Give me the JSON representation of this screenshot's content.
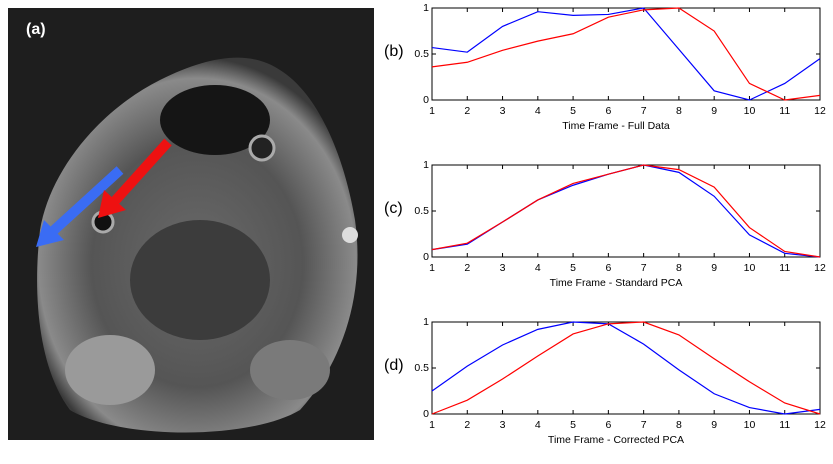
{
  "image": {
    "label": "(a)"
  },
  "chart_data": [
    {
      "type": "line",
      "label": "(b)",
      "xlabel": "Time Frame - Full Data",
      "x": [
        1,
        2,
        3,
        4,
        5,
        6,
        7,
        8,
        9,
        10,
        11,
        12
      ],
      "series": [
        {
          "color": "#0000ff",
          "values": [
            0.57,
            0.52,
            0.8,
            0.96,
            0.92,
            0.93,
            1.0,
            0.55,
            0.1,
            0.0,
            0.18,
            0.45
          ]
        },
        {
          "color": "#ff0000",
          "values": [
            0.36,
            0.41,
            0.54,
            0.64,
            0.72,
            0.9,
            0.98,
            1.0,
            0.75,
            0.18,
            0.0,
            0.05
          ]
        }
      ],
      "xlim": [
        1,
        12
      ],
      "xticks": [
        1,
        2,
        3,
        4,
        5,
        6,
        7,
        8,
        9,
        10,
        11,
        12
      ],
      "ylim": [
        0,
        1
      ],
      "yticks": [
        0,
        0.5,
        1
      ]
    },
    {
      "type": "line",
      "label": "(c)",
      "xlabel": "Time Frame - Standard PCA",
      "x": [
        1,
        2,
        3,
        4,
        5,
        6,
        7,
        8,
        9,
        10,
        11,
        12
      ],
      "series": [
        {
          "color": "#0000ff",
          "values": [
            0.08,
            0.14,
            0.38,
            0.62,
            0.78,
            0.9,
            1.0,
            0.92,
            0.66,
            0.24,
            0.04,
            0.0
          ]
        },
        {
          "color": "#ff0000",
          "values": [
            0.08,
            0.15,
            0.38,
            0.62,
            0.8,
            0.9,
            1.0,
            0.95,
            0.76,
            0.32,
            0.06,
            0.0
          ]
        }
      ],
      "xlim": [
        1,
        12
      ],
      "xticks": [
        1,
        2,
        3,
        4,
        5,
        6,
        7,
        8,
        9,
        10,
        11,
        12
      ],
      "ylim": [
        0,
        1
      ],
      "yticks": [
        0,
        0.5,
        1
      ]
    },
    {
      "type": "line",
      "label": "(d)",
      "xlabel": "Time Frame - Corrected PCA",
      "x": [
        1,
        2,
        3,
        4,
        5,
        6,
        7,
        8,
        9,
        10,
        11,
        12
      ],
      "series": [
        {
          "color": "#0000ff",
          "values": [
            0.25,
            0.52,
            0.75,
            0.92,
            1.0,
            0.98,
            0.76,
            0.48,
            0.22,
            0.07,
            0.0,
            0.05
          ]
        },
        {
          "color": "#ff0000",
          "values": [
            0.0,
            0.15,
            0.38,
            0.63,
            0.87,
            0.98,
            1.0,
            0.86,
            0.6,
            0.35,
            0.12,
            0.0
          ]
        }
      ],
      "xlim": [
        1,
        12
      ],
      "xticks": [
        1,
        2,
        3,
        4,
        5,
        6,
        7,
        8,
        9,
        10,
        11,
        12
      ],
      "ylim": [
        0,
        1
      ],
      "yticks": [
        0,
        0.5,
        1
      ]
    }
  ]
}
